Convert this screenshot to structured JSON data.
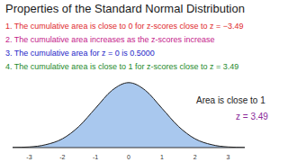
{
  "title": "Properties of the Standard Normal Distribution",
  "properties": [
    {
      "text": "1. The cumulative area is close to 0 for z-scores close to z = −3.49",
      "color": "#e0282c"
    },
    {
      "text": "2. The cumulative area increases as the z-scores increase",
      "color": "#c4208a"
    },
    {
      "text": "3. The cumulative area for z = 0 is 0.5000",
      "color": "#2626c8"
    },
    {
      "text": "4. The cumulative area is close to 1 for z-scores close to z = 3.49",
      "color": "#238a2a"
    }
  ],
  "chart_data": {
    "type": "area",
    "x": [
      -3.5,
      -3,
      -2.5,
      -2,
      -1.5,
      -1,
      -0.5,
      0,
      0.5,
      1,
      1.5,
      2,
      2.5,
      3,
      3.5
    ],
    "values": [
      0.001,
      0.004,
      0.018,
      0.054,
      0.13,
      0.242,
      0.352,
      0.399,
      0.352,
      0.242,
      0.13,
      0.054,
      0.018,
      0.004,
      0.001
    ],
    "color": "#a9c8ee",
    "xlim": [
      -3.5,
      3.5
    ],
    "xticks": [
      -3,
      -2,
      -1,
      0,
      1,
      2,
      3
    ],
    "ylim": [
      0,
      0.42
    ],
    "tick_labels": "x",
    "annotations": [
      {
        "text": "Area is close to 1",
        "color": "#222222"
      },
      {
        "text": "z = 3.49",
        "color": "#8a2a9a"
      }
    ]
  }
}
